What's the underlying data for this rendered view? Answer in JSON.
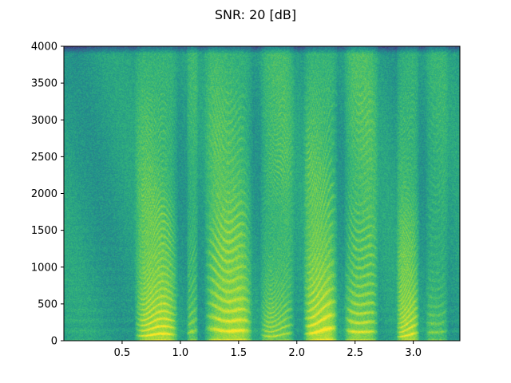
{
  "chart_data": {
    "type": "heatmap",
    "title": "SNR: 20 [dB]",
    "xlabel": "",
    "ylabel": "",
    "xlim": [
      0.0,
      3.4
    ],
    "ylim": [
      0,
      4000
    ],
    "x_ticks": [
      "0.5",
      "1.0",
      "1.5",
      "2.0",
      "2.5",
      "3.0"
    ],
    "x_tick_values": [
      0.5,
      1.0,
      1.5,
      2.0,
      2.5,
      3.0
    ],
    "y_ticks": [
      "0",
      "500",
      "1000",
      "1500",
      "2000",
      "2500",
      "3000",
      "3500",
      "4000"
    ],
    "y_tick_values": [
      0,
      500,
      1000,
      1500,
      2000,
      2500,
      3000,
      3500,
      4000
    ],
    "grid": false,
    "colormap": "viridis",
    "colors": {
      "low": "#3b528b",
      "mid": "#21918c",
      "high": "#fde725"
    },
    "speech_segments": [
      {
        "start": 0.6,
        "end": 0.98,
        "intensity": 0.95
      },
      {
        "start": 1.05,
        "end": 1.15,
        "intensity": 0.6
      },
      {
        "start": 1.2,
        "end": 1.62,
        "intensity": 0.95
      },
      {
        "start": 1.68,
        "end": 1.98,
        "intensity": 0.75
      },
      {
        "start": 2.05,
        "end": 2.35,
        "intensity": 1.0
      },
      {
        "start": 2.4,
        "end": 2.7,
        "intensity": 0.9
      },
      {
        "start": 2.85,
        "end": 3.05,
        "intensity": 0.85
      },
      {
        "start": 3.1,
        "end": 3.3,
        "intensity": 0.5
      }
    ]
  }
}
